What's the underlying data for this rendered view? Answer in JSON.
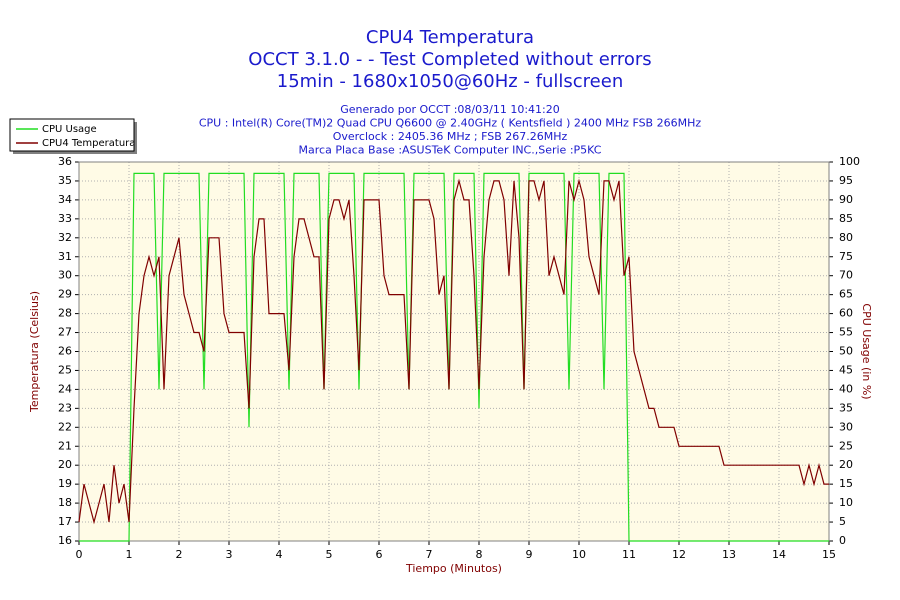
{
  "chart_data": {
    "type": "line",
    "title": [
      "CPU4 Temperatura",
      "OCCT 3.1.0 -  - Test Completed without errors",
      "15min - 1680x1050@60Hz - fullscreen"
    ],
    "subtitle": [
      "Generado por OCCT :08/03/11 10:41:20",
      "CPU : Intel(R) Core(TM)2 Quad CPU Q6600 @ 2.40GHz ( Kentsfield ) 2400 MHz FSB 266MHz",
      "Overclock : 2405.36 MHz ; FSB 267.26MHz",
      "Marca Placa Base :ASUSTeK Computer INC.,Serie :P5KC"
    ],
    "xlabel": "Tiempo (Minutos)",
    "ylabel": "Temperatura (Celsius)",
    "y2label": "CPU Usage (in %)",
    "xlim": [
      0,
      15
    ],
    "xticks": [
      0,
      1,
      2,
      3,
      4,
      5,
      6,
      7,
      8,
      9,
      10,
      11,
      12,
      13,
      14,
      15
    ],
    "ylim": [
      16,
      36
    ],
    "yticks": [
      16,
      17,
      18,
      19,
      20,
      21,
      22,
      23,
      24,
      25,
      26,
      27,
      28,
      29,
      30,
      31,
      32,
      33,
      34,
      35,
      36
    ],
    "y2lim": [
      0,
      100
    ],
    "y2ticks": [
      0,
      5,
      10,
      15,
      20,
      25,
      30,
      35,
      40,
      45,
      50,
      55,
      60,
      65,
      70,
      75,
      80,
      85,
      90,
      95,
      100
    ],
    "grid": true,
    "legend": "top-left",
    "x": [
      0,
      0.1,
      0.2,
      0.3,
      0.4,
      0.5,
      0.6,
      0.7,
      0.8,
      0.9,
      1,
      1.1,
      1.2,
      1.3,
      1.4,
      1.5,
      1.6,
      1.7,
      1.8,
      1.9,
      2,
      2.1,
      2.2,
      2.3,
      2.4,
      2.5,
      2.6,
      2.7,
      2.8,
      2.9,
      3,
      3.1,
      3.2,
      3.3,
      3.4,
      3.5,
      3.6,
      3.7,
      3.8,
      3.9,
      4,
      4.1,
      4.2,
      4.3,
      4.4,
      4.5,
      4.6,
      4.7,
      4.8,
      4.9,
      5,
      5.1,
      5.2,
      5.3,
      5.4,
      5.5,
      5.6,
      5.7,
      5.8,
      5.9,
      6,
      6.1,
      6.2,
      6.3,
      6.4,
      6.5,
      6.6,
      6.7,
      6.8,
      6.9,
      7,
      7.1,
      7.2,
      7.3,
      7.4,
      7.5,
      7.6,
      7.7,
      7.8,
      7.9,
      8,
      8.1,
      8.2,
      8.3,
      8.4,
      8.5,
      8.6,
      8.7,
      8.8,
      8.9,
      9,
      9.1,
      9.2,
      9.3,
      9.4,
      9.5,
      9.6,
      9.7,
      9.8,
      9.9,
      10,
      10.1,
      10.2,
      10.3,
      10.4,
      10.5,
      10.6,
      10.7,
      10.8,
      10.9,
      11,
      11.1,
      11.2,
      11.3,
      11.4,
      11.5,
      11.6,
      11.7,
      11.8,
      11.9,
      12,
      12.1,
      12.2,
      12.3,
      12.4,
      12.5,
      12.6,
      12.7,
      12.8,
      12.9,
      13,
      13.1,
      13.2,
      13.3,
      13.4,
      13.5,
      13.6,
      13.7,
      13.8,
      13.9,
      14,
      14.1,
      14.2,
      14.3,
      14.4,
      14.5,
      14.6,
      14.7,
      14.8,
      14.9,
      15
    ],
    "series": [
      {
        "name": "CPU Usage",
        "color": "#22dd22",
        "axis": "y2",
        "values": [
          0,
          0,
          0,
          0,
          0,
          0,
          0,
          0,
          0,
          0,
          0,
          97,
          97,
          97,
          97,
          97,
          40,
          97,
          97,
          97,
          97,
          97,
          97,
          97,
          97,
          40,
          97,
          97,
          97,
          97,
          97,
          97,
          97,
          97,
          30,
          97,
          97,
          97,
          97,
          97,
          97,
          97,
          40,
          97,
          97,
          97,
          97,
          97,
          97,
          40,
          97,
          97,
          97,
          97,
          97,
          97,
          40,
          97,
          97,
          97,
          97,
          97,
          97,
          97,
          97,
          97,
          40,
          97,
          97,
          97,
          97,
          97,
          97,
          97,
          40,
          97,
          97,
          97,
          97,
          97,
          35,
          97,
          97,
          97,
          97,
          97,
          97,
          97,
          97,
          40,
          97,
          97,
          97,
          97,
          97,
          97,
          97,
          97,
          40,
          97,
          97,
          97,
          97,
          97,
          97,
          40,
          97,
          97,
          97,
          97,
          0,
          0,
          0,
          0,
          0,
          0,
          0,
          0,
          0,
          0,
          0,
          0,
          0,
          0,
          0,
          0,
          0,
          0,
          0,
          0,
          0,
          0,
          0,
          0,
          0,
          0,
          0,
          0,
          0,
          0,
          0,
          0,
          0,
          0,
          0,
          0,
          0,
          0,
          0,
          0,
          0
        ]
      },
      {
        "name": "CPU4 Temperatura",
        "color": "#800000",
        "values": [
          17,
          19,
          18,
          17,
          18,
          19,
          17,
          20,
          18,
          19,
          17,
          23,
          28,
          30,
          31,
          30,
          31,
          24,
          30,
          31,
          32,
          29,
          28,
          27,
          27,
          26,
          32,
          32,
          32,
          28,
          27,
          27,
          27,
          27,
          23,
          31,
          33,
          33,
          28,
          28,
          28,
          28,
          25,
          31,
          33,
          33,
          32,
          31,
          31,
          24,
          33,
          34,
          34,
          33,
          34,
          30,
          25,
          34,
          34,
          34,
          34,
          30,
          29,
          29,
          29,
          29,
          24,
          34,
          34,
          34,
          34,
          33,
          29,
          30,
          24,
          34,
          35,
          34,
          34,
          30,
          24,
          31,
          34,
          35,
          35,
          34,
          30,
          35,
          32,
          24,
          35,
          35,
          34,
          35,
          30,
          31,
          30,
          29,
          35,
          34,
          35,
          34,
          31,
          30,
          29,
          35,
          35,
          34,
          35,
          30,
          31,
          26,
          25,
          24,
          23,
          23,
          22,
          22,
          22,
          22,
          21,
          21,
          21,
          21,
          21,
          21,
          21,
          21,
          21,
          20,
          20,
          20,
          20,
          20,
          20,
          20,
          20,
          20,
          20,
          20,
          20,
          20,
          20,
          20,
          20,
          19,
          20,
          19,
          20,
          19,
          19
        ]
      }
    ]
  }
}
